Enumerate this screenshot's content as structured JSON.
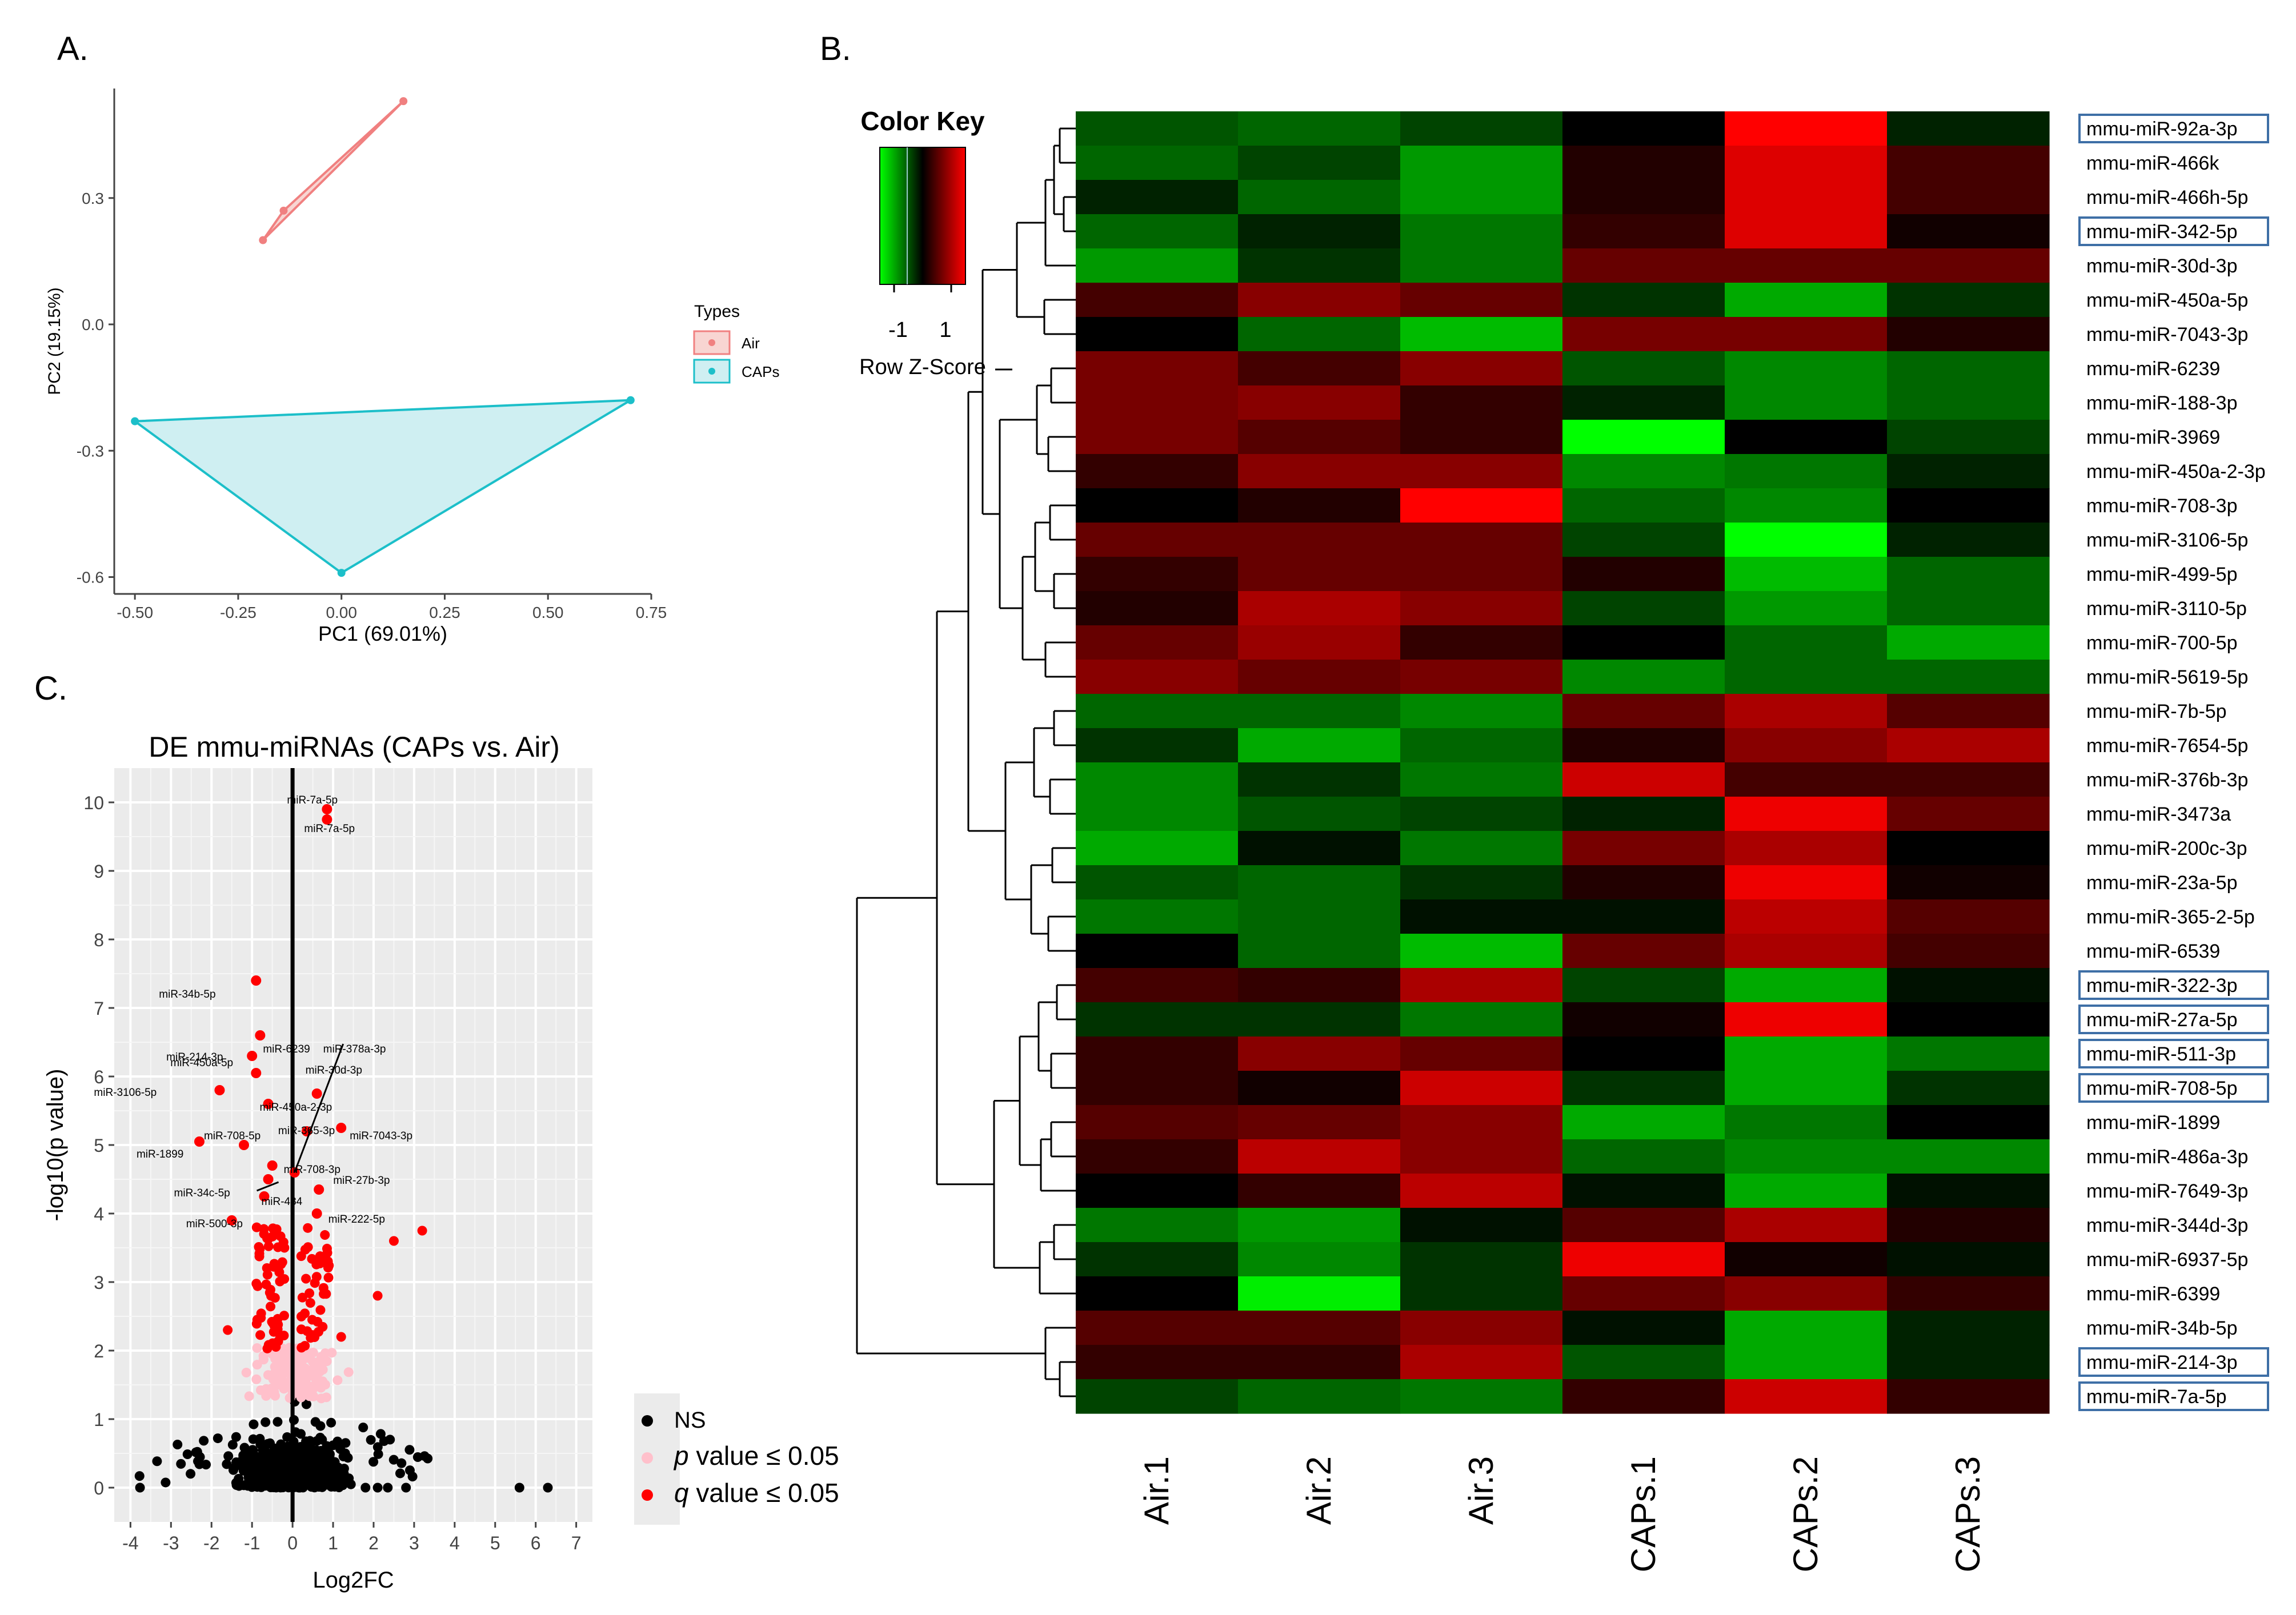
{
  "panel_labels": {
    "a": "A.",
    "b": "B.",
    "c": "C."
  },
  "chart_data": [
    {
      "panel": "A",
      "type": "scatter",
      "title": "",
      "xlabel": "PC1 (69.01%)",
      "ylabel": "PC2 (19.15%)",
      "xlim": [
        -0.55,
        0.75
      ],
      "ylim": [
        -0.64,
        0.56
      ],
      "xticks": [
        "-0.50",
        "-0.25",
        "0.00",
        "0.25",
        "0.50",
        "0.75"
      ],
      "yticks": [
        "0.3",
        "0.0",
        "-0.3",
        "-0.6"
      ],
      "legend_title": "Types",
      "legend_position": "right",
      "series": [
        {
          "name": "Air",
          "color": "#f08080",
          "fill": "#f8d5d2",
          "points": [
            [
              0.15,
              0.53
            ],
            [
              -0.14,
              0.27
            ],
            [
              -0.19,
              0.2
            ]
          ]
        },
        {
          "name": "CAPs",
          "color": "#1cbfc9",
          "fill": "#cfeff2",
          "points": [
            [
              -0.5,
              -0.23
            ],
            [
              0.7,
              -0.18
            ],
            [
              0.0,
              -0.59
            ]
          ]
        }
      ]
    },
    {
      "panel": "B",
      "type": "heatmap",
      "color_key": {
        "title": "Color Key",
        "subtitle": "Row Z-Score",
        "ticks": [
          "-1",
          "1"
        ],
        "low": "#00ff00",
        "mid": "#000000",
        "high": "#ff0000"
      },
      "columns": [
        "Air.1",
        "Air.2",
        "Air.3",
        "CAPs.1",
        "CAPs.2",
        "CAPs.3"
      ],
      "rows": [
        "mmu-miR-92a-3p",
        "mmu-miR-466k",
        "mmu-miR-466h-5p",
        "mmu-miR-342-5p",
        "mmu-miR-30d-3p",
        "mmu-miR-450a-5p",
        "mmu-miR-7043-3p",
        "mmu-miR-6239",
        "mmu-miR-188-3p",
        "mmu-miR-3969",
        "mmu-miR-450a-2-3p",
        "mmu-miR-708-3p",
        "mmu-miR-3106-5p",
        "mmu-miR-499-5p",
        "mmu-miR-3110-5p",
        "mmu-miR-700-5p",
        "mmu-miR-5619-5p",
        "mmu-miR-7b-5p",
        "mmu-miR-7654-5p",
        "mmu-miR-376b-3p",
        "mmu-miR-3473a",
        "mmu-miR-200c-3p",
        "mmu-miR-23a-5p",
        "mmu-miR-365-2-5p",
        "mmu-miR-6539",
        "mmu-miR-322-3p",
        "mmu-miR-27a-5p",
        "mmu-miR-511-3p",
        "mmu-miR-708-5p",
        "mmu-miR-1899",
        "mmu-miR-486a-3p",
        "mmu-miR-7649-3p",
        "mmu-miR-344d-3p",
        "mmu-miR-6937-5p",
        "mmu-miR-6399",
        "mmu-miR-34b-5p",
        "mmu-miR-214-3p",
        "mmu-miR-7a-5p"
      ],
      "boxed_rows": [
        "mmu-miR-92a-3p",
        "mmu-miR-342-5p",
        "mmu-miR-322-3p",
        "mmu-miR-27a-5p",
        "mmu-miR-511-3p",
        "mmu-miR-708-5p",
        "mmu-miR-214-3p",
        "mmu-miR-7a-5p"
      ],
      "zscores": [
        [
          -0.5,
          -0.6,
          -0.4,
          0.0,
          1.5,
          -0.2
        ],
        [
          -0.6,
          -0.4,
          -0.9,
          0.2,
          1.3,
          0.4
        ],
        [
          -0.2,
          -0.6,
          -0.9,
          0.2,
          1.3,
          0.4
        ],
        [
          -0.6,
          -0.2,
          -0.7,
          0.3,
          1.3,
          0.1
        ],
        [
          -0.9,
          -0.3,
          -0.7,
          0.6,
          0.6,
          0.6
        ],
        [
          0.4,
          0.8,
          0.6,
          -0.3,
          -1.0,
          -0.3
        ],
        [
          0.0,
          -0.6,
          -1.1,
          0.7,
          0.7,
          0.2
        ],
        [
          0.7,
          0.4,
          0.8,
          -0.5,
          -0.8,
          -0.6
        ],
        [
          0.7,
          0.8,
          0.3,
          -0.2,
          -0.8,
          -0.6
        ],
        [
          0.7,
          0.5,
          0.3,
          -1.5,
          0.0,
          -0.4
        ],
        [
          0.3,
          0.8,
          0.8,
          -0.8,
          -0.7,
          -0.2
        ],
        [
          0.0,
          0.2,
          1.5,
          -0.6,
          -0.8,
          0.0
        ],
        [
          0.6,
          0.6,
          0.6,
          -0.4,
          -1.5,
          -0.2
        ],
        [
          0.3,
          0.6,
          0.6,
          0.2,
          -1.1,
          -0.6
        ],
        [
          0.2,
          1.0,
          0.8,
          -0.4,
          -0.9,
          -0.6
        ],
        [
          0.6,
          0.9,
          0.3,
          0.0,
          -0.6,
          -1.0
        ],
        [
          0.8,
          0.6,
          0.7,
          -0.8,
          -0.6,
          -0.6
        ],
        [
          -0.6,
          -0.6,
          -0.8,
          0.6,
          1.0,
          0.5
        ],
        [
          -0.3,
          -1.0,
          -0.6,
          0.2,
          0.8,
          1.0
        ],
        [
          -0.8,
          -0.3,
          -0.7,
          1.2,
          0.4,
          0.4
        ],
        [
          -0.8,
          -0.5,
          -0.4,
          -0.2,
          1.4,
          0.6
        ],
        [
          -1.0,
          -0.1,
          -0.7,
          0.7,
          1.0,
          0.0
        ],
        [
          -0.5,
          -0.6,
          -0.3,
          0.2,
          1.4,
          0.1
        ],
        [
          -0.7,
          -0.6,
          -0.1,
          -0.1,
          1.1,
          0.5
        ],
        [
          0.0,
          -0.6,
          -1.1,
          0.6,
          1.0,
          0.4
        ],
        [
          0.4,
          0.3,
          1.0,
          -0.4,
          -1.0,
          -0.1
        ],
        [
          -0.3,
          -0.3,
          -0.7,
          0.1,
          1.4,
          0.0
        ],
        [
          0.3,
          0.8,
          0.6,
          0.0,
          -1.0,
          -0.7
        ],
        [
          0.3,
          0.1,
          1.2,
          -0.3,
          -1.0,
          -0.3
        ],
        [
          0.5,
          0.6,
          0.8,
          -1.0,
          -0.7,
          0.0
        ],
        [
          0.3,
          1.1,
          0.8,
          -0.6,
          -0.8,
          -0.8
        ],
        [
          0.0,
          0.3,
          1.1,
          -0.1,
          -1.0,
          -0.1
        ],
        [
          -0.7,
          -0.9,
          -0.1,
          0.5,
          1.0,
          0.2
        ],
        [
          -0.3,
          -0.8,
          -0.3,
          1.4,
          0.1,
          -0.1
        ],
        [
          0.0,
          -1.4,
          -0.3,
          0.6,
          0.8,
          0.3
        ],
        [
          0.5,
          0.5,
          0.8,
          -0.1,
          -1.0,
          -0.2
        ],
        [
          0.3,
          0.3,
          1.0,
          -0.5,
          -1.0,
          -0.2
        ],
        [
          -0.4,
          -0.6,
          -0.7,
          0.3,
          1.2,
          0.3
        ]
      ]
    },
    {
      "panel": "C",
      "type": "scatter",
      "title": "DE mmu-miRNAs (CAPs vs. Air)",
      "xlabel": "Log2FC",
      "ylabel": "-log10(p value)",
      "xlim": [
        -4.4,
        7.4
      ],
      "ylim": [
        -0.5,
        10.5
      ],
      "xticks": [
        "-4",
        "-3",
        "-2",
        "-1",
        "0",
        "1",
        "2",
        "3",
        "4",
        "5",
        "6",
        "7"
      ],
      "yticks": [
        "0",
        "1",
        "2",
        "3",
        "4",
        "5",
        "6",
        "7",
        "8",
        "9",
        "10"
      ],
      "legend": {
        "ns": "NS",
        "p_prefix": "p",
        "p_text": " value ≤ 0.05",
        "q_prefix": "q",
        "q_text": " value ≤ 0.05",
        "colors": {
          "ns": "#000000",
          "p": "#ffc0cb",
          "q": "#ff0000"
        }
      },
      "labeled_points": [
        {
          "label": "miR-7a-5p",
          "x": 0.85,
          "y": 9.9
        },
        {
          "label": "miR-7a-5p",
          "x": 0.85,
          "y": 9.75
        },
        {
          "label": "miR-34b-5p",
          "x": -0.9,
          "y": 7.4
        },
        {
          "label": "miR-6239",
          "x": -0.8,
          "y": 6.6
        },
        {
          "label": "miR-214-3p",
          "x": -1.0,
          "y": 6.3
        },
        {
          "label": "miR-450a-5p",
          "x": -0.9,
          "y": 6.05
        },
        {
          "label": "miR-3106-5p",
          "x": -1.8,
          "y": 5.8
        },
        {
          "label": "miR-450a-2-3p",
          "x": -0.6,
          "y": 5.6
        },
        {
          "label": "miR-30d-3p",
          "x": 0.6,
          "y": 5.75
        },
        {
          "label": "miR-378a-3p",
          "x": 0.05,
          "y": 4.6
        },
        {
          "label": "miR-7043-3p",
          "x": 1.2,
          "y": 5.25
        },
        {
          "label": "miR-365-3p",
          "x": 0.35,
          "y": 5.2
        },
        {
          "label": "miR-708-5p",
          "x": -1.2,
          "y": 5.0
        },
        {
          "label": "miR-1899",
          "x": -2.3,
          "y": 5.05
        },
        {
          "label": "miR-708-3p",
          "x": -0.5,
          "y": 4.7
        },
        {
          "label": "miR-34c-5p",
          "x": -0.6,
          "y": 4.5
        },
        {
          "label": "miR-27b-3p",
          "x": 0.65,
          "y": 4.35
        },
        {
          "label": "miR-484",
          "x": -0.7,
          "y": 4.25
        },
        {
          "label": "miR-222-5p",
          "x": 0.6,
          "y": 4.0
        },
        {
          "label": "miR-500-3p",
          "x": -1.5,
          "y": 3.9
        }
      ]
    }
  ]
}
